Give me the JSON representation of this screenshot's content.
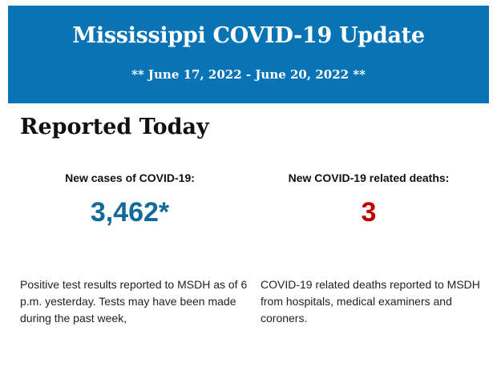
{
  "header": {
    "title": "Mississippi COVID-19 Update",
    "date_range": "** June 17, 2022 - June 20, 2022 **",
    "background_color": "#0874b5"
  },
  "section": {
    "title": "Reported Today"
  },
  "cases": {
    "label": "New cases of COVID-19:",
    "value": "3,462*",
    "color": "#12699a",
    "description": "Positive test results reported to MSDH as of 6 p.m. yesterday. Tests may have been made during the past week,"
  },
  "deaths": {
    "label": "New COVID-19 related deaths:",
    "value": "3",
    "color": "#c00000",
    "description": "COVID-19 related deaths reported to MSDH from hospitals, medical examiners and coroners."
  }
}
